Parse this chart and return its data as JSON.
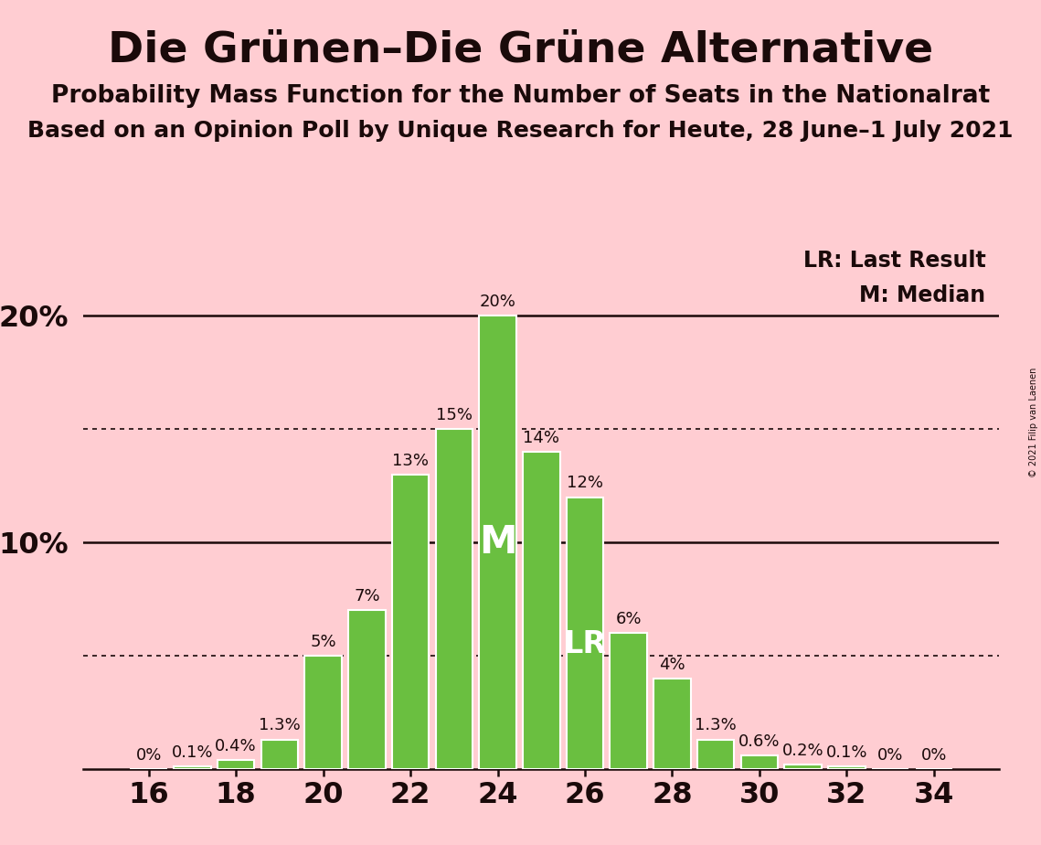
{
  "title": "Die Grünen–Die Grüne Alternative",
  "subtitle1": "Probability Mass Function for the Number of Seats in the Nationalrat",
  "subtitle2": "Based on an Opinion Poll by Unique Research for Heute, 28 June–1 July 2021",
  "copyright": "© 2021 Filip van Laenen",
  "seats": [
    16,
    17,
    18,
    19,
    20,
    21,
    22,
    23,
    24,
    25,
    26,
    27,
    28,
    29,
    30,
    31,
    32,
    33,
    34
  ],
  "probabilities": [
    0.0,
    0.1,
    0.4,
    1.3,
    5.0,
    7.0,
    13.0,
    15.0,
    20.0,
    14.0,
    12.0,
    6.0,
    4.0,
    1.3,
    0.6,
    0.2,
    0.1,
    0.0,
    0.0
  ],
  "bar_color": "#6abf40",
  "bar_edge_color": "#ffffff",
  "background_color": "#ffcdd2",
  "median_seat": 24,
  "last_result_seat": 26,
  "xlabel_seats": [
    16,
    18,
    20,
    22,
    24,
    26,
    28,
    30,
    32,
    34
  ],
  "dotted_lines": [
    5.0,
    15.0
  ],
  "solid_lines": [
    10.0,
    20.0
  ],
  "legend_lr": "LR: Last Result",
  "legend_m": "M: Median",
  "bar_label_fontsize": 13,
  "title_fontsize": 34,
  "subtitle1_fontsize": 19,
  "subtitle2_fontsize": 18,
  "tick_fontsize": 23,
  "legend_fontsize": 17,
  "median_label_fontsize": 30,
  "lr_label_fontsize": 24
}
